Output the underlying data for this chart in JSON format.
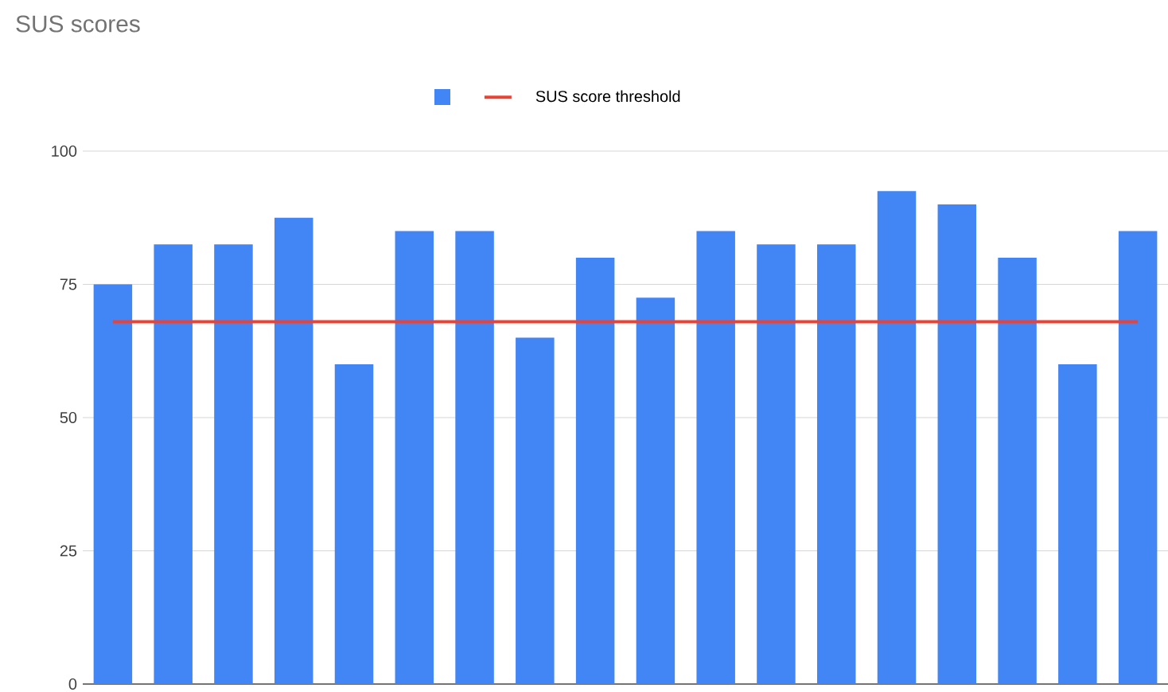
{
  "chart_data": {
    "type": "bar",
    "title": "SUS scores",
    "categories": [
      null,
      null,
      null,
      null,
      null,
      null,
      null,
      null,
      null,
      null,
      null,
      null,
      null,
      null,
      null,
      null,
      null,
      null
    ],
    "series": [
      {
        "color": "#4285f4",
        "values": [
          75,
          82.5,
          82.5,
          87.5,
          60,
          85,
          85,
          65,
          80,
          72.5,
          85,
          82.5,
          82.5,
          92.5,
          90,
          80,
          60,
          85
        ]
      },
      {
        "name": "SUS score threshold",
        "type": "line",
        "color": "#ea4335",
        "values": [
          68,
          68,
          68,
          68,
          68,
          68,
          68,
          68,
          68,
          68,
          68,
          68,
          68,
          68,
          68,
          68,
          68,
          68
        ]
      }
    ],
    "ylim": [
      0,
      100
    ],
    "yticks": [
      0,
      25,
      50,
      75,
      100
    ],
    "grid": "y",
    "legend": "top"
  }
}
